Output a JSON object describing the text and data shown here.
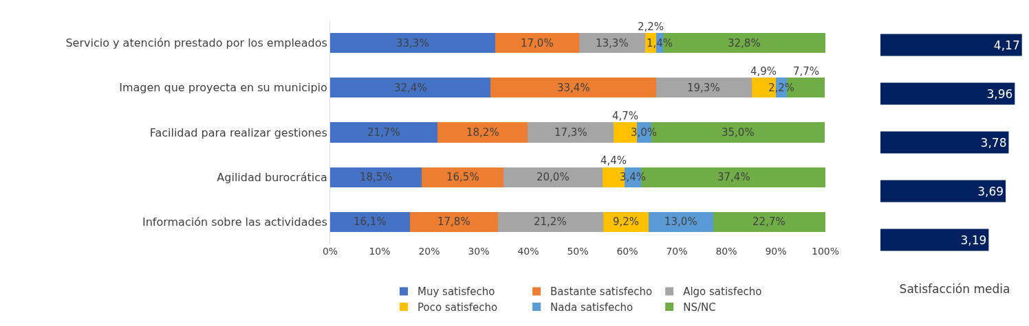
{
  "chart_data": [
    {
      "type": "bar",
      "orientation": "horizontal",
      "stacked": true,
      "categories": [
        "Servicio y atención prestado por los empleados",
        "Imagen que proyecta en su municipio",
        "Facilidad para realizar gestiones",
        "Agilidad burocrática",
        "Información sobre las actividades"
      ],
      "series": [
        {
          "name": "Muy satisfecho",
          "color": "#4472c4",
          "values": [
            33.3,
            32.4,
            21.7,
            18.5,
            16.1
          ],
          "value_labels": [
            "33,3%",
            "32,4%",
            "21,7%",
            "18,5%",
            "16,1%"
          ]
        },
        {
          "name": "Bastante satisfecho",
          "color": "#ed7d31",
          "values": [
            17.0,
            33.4,
            18.2,
            16.5,
            17.8
          ],
          "value_labels": [
            "17,0%",
            "33,4%",
            "18,2%",
            "16,5%",
            "17,8%"
          ]
        },
        {
          "name": "Algo satisfecho",
          "color": "#a5a5a5",
          "values": [
            13.3,
            19.3,
            17.3,
            20.0,
            21.2
          ],
          "value_labels": [
            "13,3%",
            "19,3%",
            "17,3%",
            "20,0%",
            "21,2%"
          ]
        },
        {
          "name": "Poco satisfecho",
          "color": "#ffc000",
          "values": [
            2.2,
            4.9,
            4.7,
            4.4,
            9.2
          ],
          "value_labels": [
            "2,2%",
            "4,9%",
            "4,7%",
            "4,4%",
            "9,2%"
          ]
        },
        {
          "name": "Nada satisfecho",
          "color": "#5b9bd5",
          "values": [
            1.4,
            2.2,
            3.0,
            3.4,
            13.0
          ],
          "value_labels": [
            "1,4%",
            "2,2%",
            "3,0%",
            "3,4%",
            "13,0%"
          ]
        },
        {
          "name": "NS/NC",
          "color": "#70ad47",
          "values": [
            32.8,
            7.7,
            35.0,
            37.4,
            22.7
          ],
          "value_labels": [
            "32,8%",
            "7,7%",
            "35,0%",
            "37,4%",
            "22,7%"
          ]
        }
      ],
      "xlim": [
        0,
        100
      ],
      "xticks": [
        {
          "value": 0,
          "label": "0%"
        },
        {
          "value": 10,
          "label": "10%"
        },
        {
          "value": 20,
          "label": "20%"
        },
        {
          "value": 30,
          "label": "30%"
        },
        {
          "value": 40,
          "label": "40%"
        },
        {
          "value": 50,
          "label": "50%"
        },
        {
          "value": 60,
          "label": "60%"
        },
        {
          "value": 70,
          "label": "70%"
        },
        {
          "value": 80,
          "label": "80%"
        },
        {
          "value": 90,
          "label": "90%"
        },
        {
          "value": 100,
          "label": "100%"
        }
      ],
      "grid": false,
      "legend": "bottom"
    },
    {
      "type": "bar",
      "orientation": "horizontal",
      "xlabel": "Satisfacción media",
      "categories": [
        null,
        null,
        null,
        null,
        null
      ],
      "series": [
        {
          "color": "#002060",
          "values": [
            4.17,
            3.96,
            3.78,
            3.69,
            3.19
          ],
          "value_labels": [
            "4,17",
            "3,96",
            "3,78",
            "3,69",
            "3,19"
          ]
        }
      ],
      "tick_labels": false,
      "grid": false,
      "legend": false
    }
  ]
}
